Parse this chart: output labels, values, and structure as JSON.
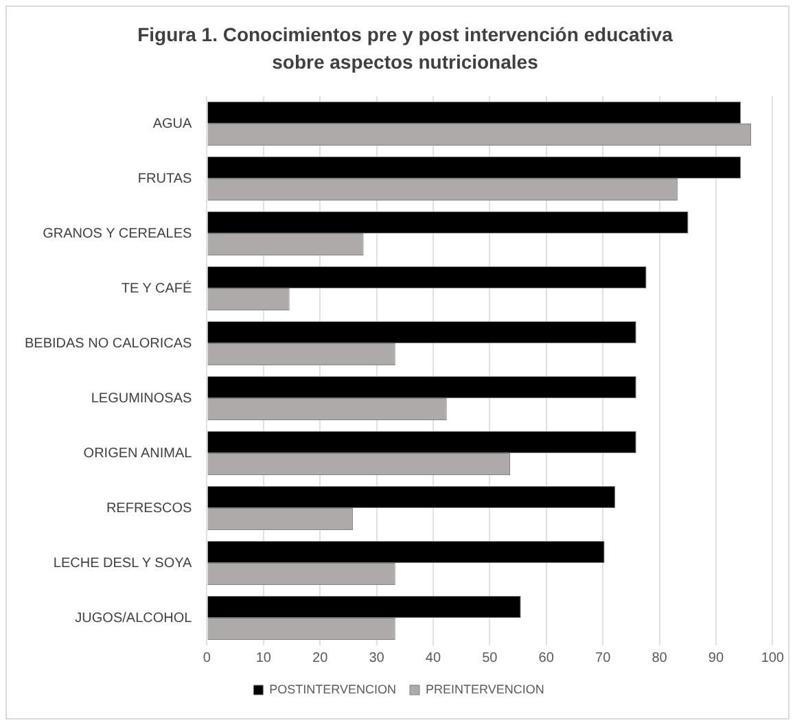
{
  "chart_data": {
    "type": "bar",
    "orientation": "horizontal",
    "title": "Figura 1. Conocimientos pre y post intervención educativa sobre aspectos nutricionales",
    "categories": [
      "AGUA",
      "FRUTAS",
      "GRANOS Y CEREALES",
      "TE Y CAFÉ",
      "BEBIDAS NO CALORICAS",
      "LEGUMINOSAS",
      "ORIGEN ANIMAL",
      "REFRESCOS",
      "LECHE DESL Y SOYA",
      "JUGOS/ALCOHOL"
    ],
    "series": [
      {
        "name": "POSTINTERVENCION",
        "color": "#000000",
        "values": [
          94.4,
          94.4,
          85.1,
          77.7,
          75.9,
          75.9,
          75.9,
          72.2,
          70.3,
          55.5
        ]
      },
      {
        "name": "PREINTERVENCION",
        "color": "#aeaaaa",
        "values": [
          96.2,
          83.2,
          27.7,
          14.6,
          33.3,
          42.4,
          53.6,
          25.8,
          33.3,
          33.3
        ]
      }
    ],
    "xlim": [
      0,
      100
    ],
    "xticks": [
      0,
      10,
      20,
      30,
      40,
      50,
      60,
      70,
      80,
      90,
      100
    ],
    "grid": "x",
    "legend": "bottom"
  }
}
